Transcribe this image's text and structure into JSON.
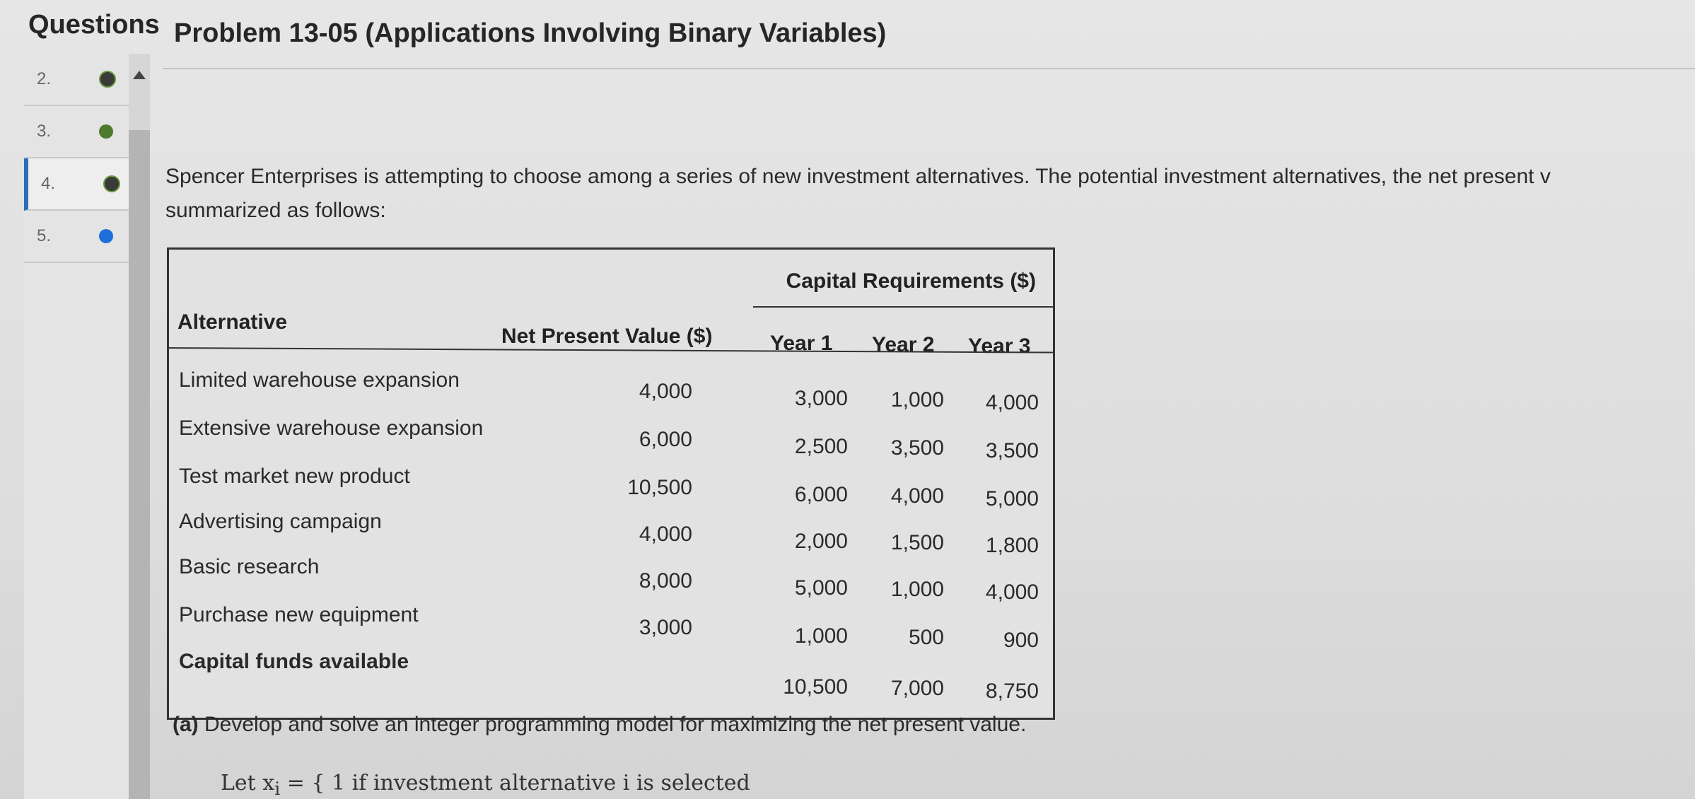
{
  "nav": {
    "header": "Questions",
    "items": [
      {
        "number": "2.",
        "status": "partial"
      },
      {
        "number": "3.",
        "status": "done"
      },
      {
        "number": "4.",
        "status": "partial"
      },
      {
        "number": "5.",
        "status": "current"
      }
    ]
  },
  "problem": {
    "title": "Problem 13-05 (Applications Involving Binary Variables)",
    "intro_line1": "Spencer Enterprises is attempting to choose among a series of new investment alternatives. The potential investment alternatives, the net present v",
    "intro_line2": "summarized as follows:"
  },
  "table": {
    "header_alternative": "Alternative",
    "header_npv": "Net Present Value ($)",
    "header_capital": "Capital Requirements ($)",
    "header_year1": "Year 1",
    "header_year2": "Year 2",
    "header_year3": "Year 3",
    "rows": [
      {
        "alternative": "Limited warehouse expansion",
        "npv": "4,000",
        "y1": "3,000",
        "y2": "1,000",
        "y3": "4,000"
      },
      {
        "alternative": "Extensive warehouse expansion",
        "npv": "6,000",
        "y1": "2,500",
        "y2": "3,500",
        "y3": "3,500"
      },
      {
        "alternative": "Test market new product",
        "npv": "10,500",
        "y1": "6,000",
        "y2": "4,000",
        "y3": "5,000"
      },
      {
        "alternative": "Advertising campaign",
        "npv": "4,000",
        "y1": "2,000",
        "y2": "1,500",
        "y3": "1,800"
      },
      {
        "alternative": "Basic research",
        "npv": "8,000",
        "y1": "5,000",
        "y2": "1,000",
        "y3": "4,000"
      },
      {
        "alternative": "Purchase new equipment",
        "npv": "3,000",
        "y1": "1,000",
        "y2": "500",
        "y3": "900"
      }
    ],
    "funds_label": "Capital funds available",
    "funds_y1": "10,500",
    "funds_y2": "7,000",
    "funds_y3": "8,750"
  },
  "part_a": {
    "label": "(a)",
    "text": "Develop and solve an integer programming model for maximizing the net present value.",
    "let_text": "Let x",
    "let_sub": "i",
    "let_rest": " = { 1 if investment alternative i is selected"
  }
}
